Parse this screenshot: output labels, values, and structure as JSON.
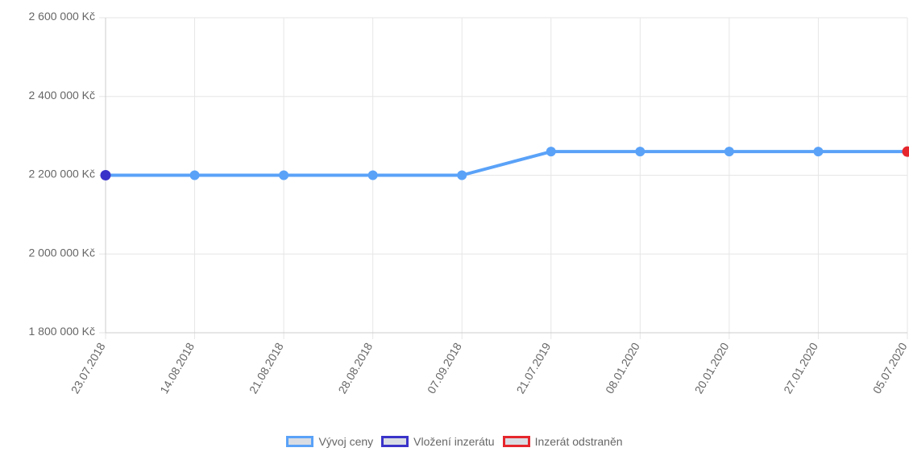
{
  "chart_data": {
    "type": "line",
    "categories": [
      "23.07.2018",
      "14.08.2018",
      "21.08.2018",
      "28.08.2018",
      "07.09.2018",
      "21.07.2019",
      "08.01.2020",
      "20.01.2020",
      "27.01.2020",
      "05.07.2020"
    ],
    "series": [
      {
        "name": "Vývoj ceny",
        "values": [
          2200000,
          2200000,
          2200000,
          2200000,
          2200000,
          2260000,
          2260000,
          2260000,
          2260000,
          2260000
        ],
        "color": "#5aa2f8"
      }
    ],
    "markers": [
      {
        "name": "Vložení inzerátu",
        "category_index": 0,
        "value": 2200000,
        "color": "#3a33c9"
      },
      {
        "name": "Inzerát odstraněn",
        "category_index": 9,
        "value": 2260000,
        "color": "#e5272d"
      }
    ],
    "ylim": [
      1800000,
      2600000
    ],
    "yticks": [
      1800000,
      2000000,
      2200000,
      2400000,
      2600000
    ],
    "ytick_labels": [
      "1 800 000 Kč",
      "2 000 000 Kč",
      "2 200 000 Kč",
      "2 400 000 Kč",
      "2 600 000 Kč"
    ],
    "grid": true,
    "legend_position": "bottom",
    "title": "",
    "xlabel": "",
    "ylabel": ""
  },
  "legend": [
    {
      "label": "Vývoj ceny",
      "color": "#5aa2f8"
    },
    {
      "label": "Vložení inzerátu",
      "color": "#3a33c9"
    },
    {
      "label": "Inzerát odstraněn",
      "color": "#e5272d"
    }
  ]
}
